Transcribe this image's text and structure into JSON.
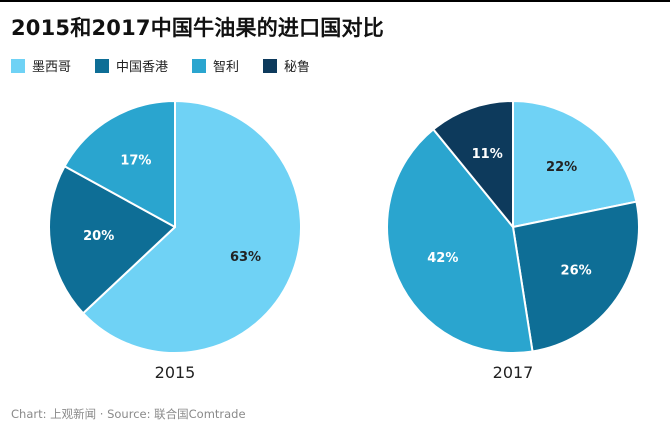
{
  "header": {
    "title": "2015和2017中国牛油果的进口国对比"
  },
  "legend": {
    "items": [
      {
        "label": "墨西哥",
        "color": "#6FD2F5"
      },
      {
        "label": "中国香港",
        "color": "#0E6E96"
      },
      {
        "label": "智利",
        "color": "#2AA5CF"
      },
      {
        "label": "秘鲁",
        "color": "#0D3A5C"
      }
    ]
  },
  "chart_data": [
    {
      "type": "pie",
      "title": "2015",
      "categories": [
        "墨西哥",
        "中国香港",
        "智利"
      ],
      "values": [
        63,
        20,
        17
      ],
      "value_labels": [
        "63%",
        "20%",
        "17%"
      ],
      "colors": [
        "#6FD2F5",
        "#0E6E96",
        "#2AA5CF"
      ],
      "label_colors": [
        "#222222",
        "#FFFFFF",
        "#FFFFFF"
      ],
      "start_angle_deg": 0,
      "direction": "clockwise",
      "legend_position": "top"
    },
    {
      "type": "pie",
      "title": "2017",
      "categories": [
        "墨西哥",
        "中国香港",
        "智利",
        "秘鲁"
      ],
      "values": [
        22,
        26,
        42,
        11
      ],
      "value_labels": [
        "22%",
        "26%",
        "42%",
        "11%"
      ],
      "colors": [
        "#6FD2F5",
        "#0E6E96",
        "#2AA5CF",
        "#0D3A5C"
      ],
      "label_colors": [
        "#222222",
        "#FFFFFF",
        "#FFFFFF",
        "#FFFFFF"
      ],
      "start_angle_deg": 0,
      "direction": "clockwise",
      "legend_position": "top"
    }
  ],
  "footer": {
    "text": "Chart: 上观新闻 · Source: 联合国Comtrade"
  },
  "colors": {
    "background": "#FFFFFF",
    "top_border": "#000000",
    "title_text": "#111111",
    "year_label_text": "#222222",
    "footer_text": "#8A8A8A",
    "slice_divider": "#FFFFFF"
  }
}
